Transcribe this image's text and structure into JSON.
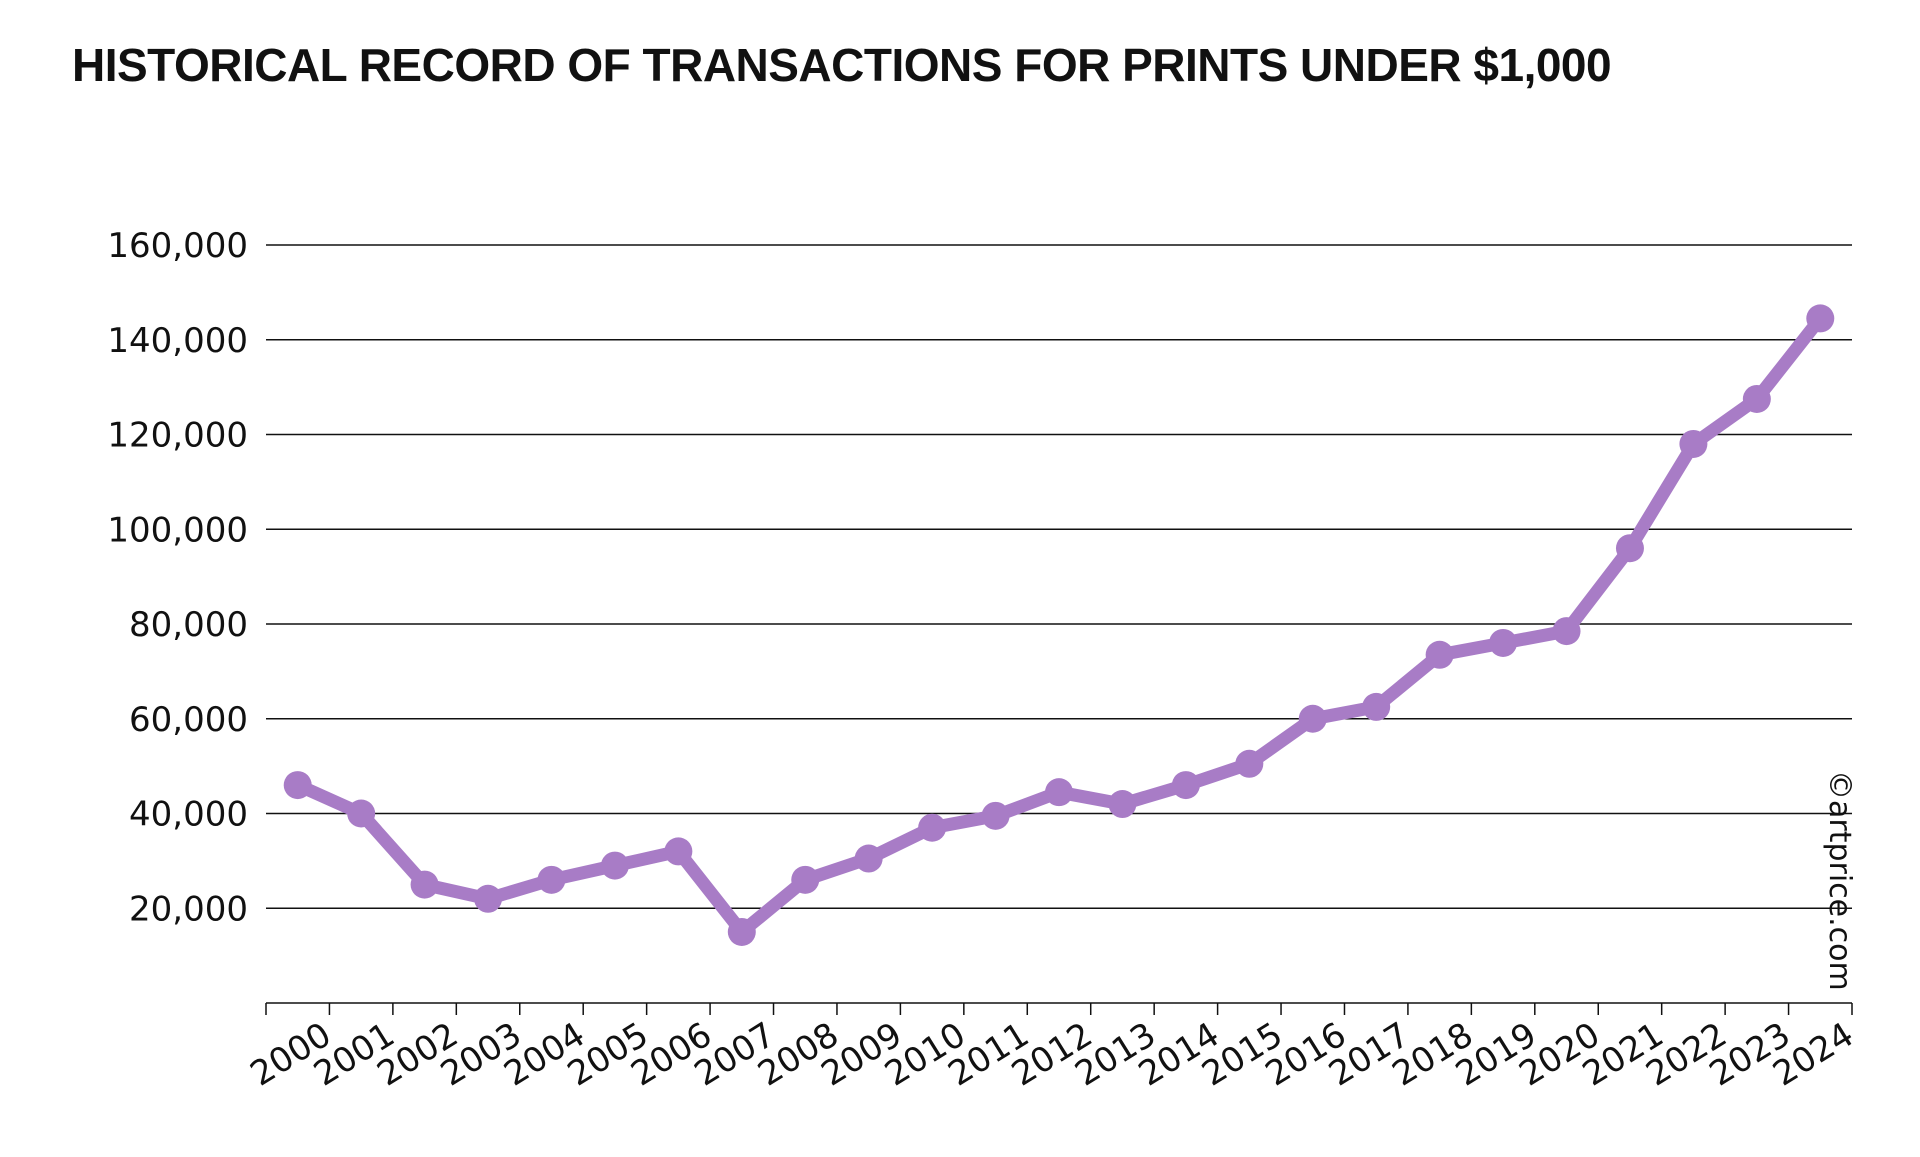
{
  "chart_data": {
    "type": "line",
    "title": "HISTORICAL RECORD OF TRANSACTIONS FOR PRINTS UNDER $1,000",
    "xlabel": "",
    "ylabel": "",
    "categories": [
      "2000",
      "2001",
      "2002",
      "2003",
      "2004",
      "2005",
      "2006",
      "2007",
      "2008",
      "2009",
      "2010",
      "2011",
      "2012",
      "2013",
      "2014",
      "2015",
      "2016",
      "2017",
      "2018",
      "2019",
      "2020",
      "2021",
      "2022",
      "2023",
      "2024"
    ],
    "series": [
      {
        "values": [
          46000,
          40000,
          25000,
          22000,
          26000,
          29000,
          32000,
          15000,
          26000,
          30500,
          37000,
          39500,
          44500,
          42000,
          46000,
          50500,
          60000,
          62500,
          73500,
          76000,
          78500,
          96000,
          118000,
          127500,
          144500
        ]
      }
    ],
    "ylim": [
      0,
      160000
    ],
    "yticks": [
      20000,
      40000,
      60000,
      80000,
      100000,
      120000,
      140000,
      160000
    ],
    "ytick_labels": [
      "20,000",
      "40,000",
      "60,000",
      "80,000",
      "100,000",
      "120,000",
      "140,000",
      "160,000"
    ],
    "grid": true,
    "legend": "none",
    "line_color": "#a87cc6",
    "gridline_color": "#111111",
    "credit": "©artprice.com"
  }
}
